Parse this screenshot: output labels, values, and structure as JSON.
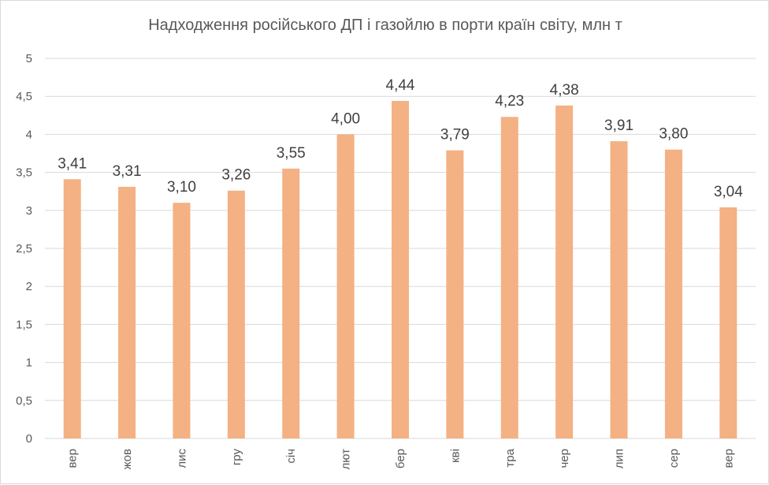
{
  "chart_data": {
    "type": "bar",
    "title": "Надходження російського ДП і газойлю в порти країн світу, млн т",
    "xlabel": "",
    "ylabel": "",
    "ylim": [
      0,
      5
    ],
    "yticks": [
      "0",
      "0,5",
      "1",
      "1,5",
      "2",
      "2,5",
      "3",
      "3,5",
      "4",
      "4,5",
      "5"
    ],
    "grid": true,
    "legend": "none",
    "categories": [
      "вер",
      "жов",
      "лис",
      "гру",
      "січ",
      "лют",
      "бер",
      "кві",
      "тра",
      "чер",
      "лип",
      "сер",
      "вер"
    ],
    "values": [
      3.41,
      3.31,
      3.1,
      3.26,
      3.55,
      4.0,
      4.44,
      3.79,
      4.23,
      4.38,
      3.91,
      3.8,
      3.04
    ],
    "data_labels": [
      "3,41",
      "3,31",
      "3,10",
      "3,26",
      "3,55",
      "4,00",
      "4,44",
      "3,79",
      "4,23",
      "4,38",
      "3,91",
      "3,80",
      "3,04"
    ],
    "bar_color": "#F4B183"
  }
}
